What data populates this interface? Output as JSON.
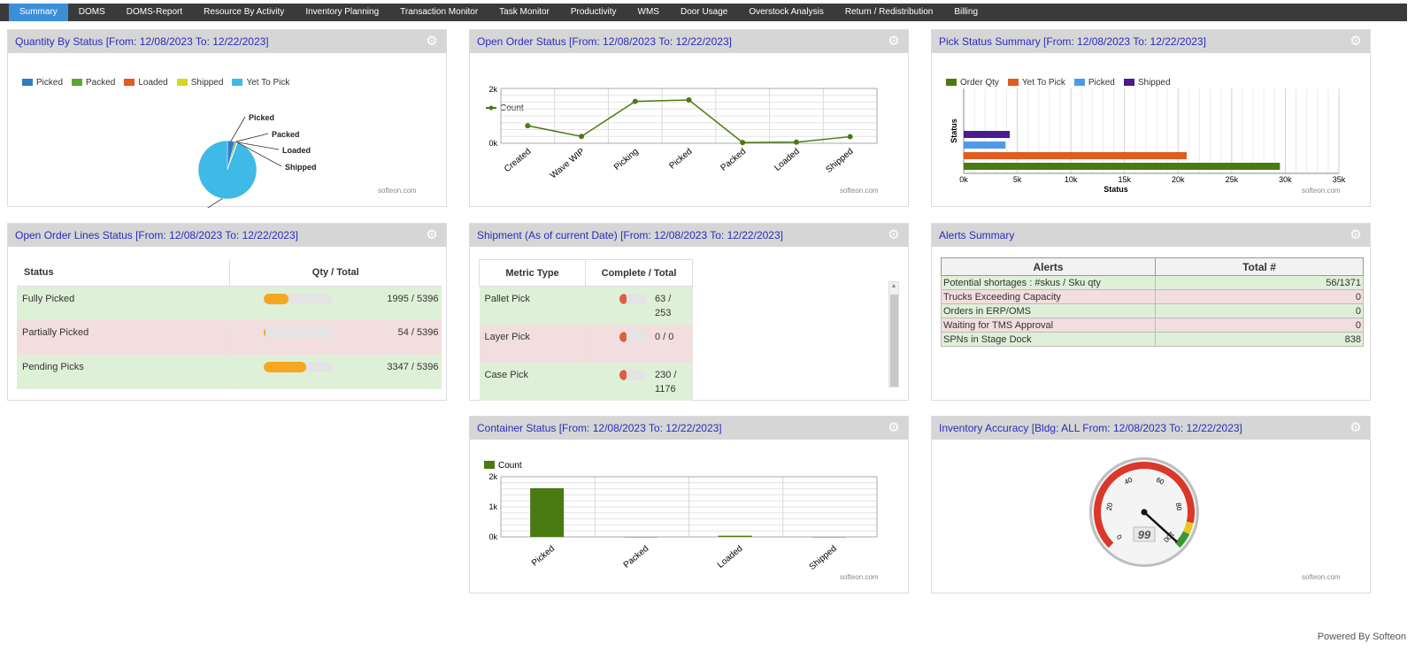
{
  "tabs": [
    "Summary",
    "DOMS",
    "DOMS-Report",
    "Resource By Activity",
    "Inventory Planning",
    "Transaction Monitor",
    "Task Monitor",
    "Productivity",
    "WMS",
    "Door Usage",
    "Overstock Analysis",
    "Return / Redistribution",
    "Billing"
  ],
  "watermark": "softeon.com",
  "footer": "Powered By Softeon",
  "panels": {
    "qty_status": {
      "title": "Quantity By Status [From: 12/08/2023 To: 12/22/2023]",
      "legend": [
        {
          "label": "Picked",
          "color": "#2e7cc4"
        },
        {
          "label": "Packed",
          "color": "#5aa832"
        },
        {
          "label": "Loaded",
          "color": "#e05c1f"
        },
        {
          "label": "Shipped",
          "color": "#d6d61f"
        },
        {
          "label": "Yet To Pick",
          "color": "#3fb9e6"
        }
      ],
      "slice_labels": [
        "Picked",
        "Packed",
        "Loaded",
        "Shipped",
        "Yet To Pick"
      ]
    },
    "open_order": {
      "title": "Open Order Status [From: 12/08/2023 To: 12/22/2023]",
      "legend": "Count"
    },
    "pick_summary": {
      "title": "Pick Status Summary [From: 12/08/2023 To: 12/22/2023]",
      "legend": [
        {
          "label": "Order Qty",
          "color": "#4a7a12"
        },
        {
          "label": "Yet To Pick",
          "color": "#e05c1f"
        },
        {
          "label": "Picked",
          "color": "#4d9ae8"
        },
        {
          "label": "Shipped",
          "color": "#4b1a8f"
        }
      ]
    },
    "order_lines": {
      "title": "Open Order Lines Status [From: 12/08/2023 To: 12/22/2023]",
      "headers": [
        "Status",
        "Qty / Total"
      ],
      "rows": [
        {
          "status": "Fully Picked",
          "value": "1995 / 5396",
          "fraction": 0.37
        },
        {
          "status": "Partially Picked",
          "value": "54 / 5396",
          "fraction": 0.01
        },
        {
          "status": "Pending Picks",
          "value": "3347 / 5396",
          "fraction": 0.62
        }
      ]
    },
    "shipment": {
      "title": "Shipment (As of current Date) [From: 12/08/2023 To: 12/22/2023]",
      "headers": [
        "Metric Type",
        "Complete / Total"
      ],
      "rows": [
        {
          "metric": "Pallet Pick",
          "line1": "63 /",
          "line2": "253"
        },
        {
          "metric": "Layer Pick",
          "line1": "0 / 0",
          "line2": ""
        },
        {
          "metric": "Case Pick",
          "line1": "230 /",
          "line2": "1176"
        }
      ]
    },
    "alerts": {
      "title": "Alerts Summary",
      "headers": [
        "Alerts",
        "Total #"
      ],
      "rows": [
        {
          "alert": "Potential shortages : #skus / Sku qty",
          "total": "56/1371"
        },
        {
          "alert": "Trucks Exceeding Capacity",
          "total": "0"
        },
        {
          "alert": "Orders in ERP/OMS",
          "total": "0"
        },
        {
          "alert": "Waiting for TMS Approval",
          "total": "0"
        },
        {
          "alert": "SPNs in Stage Dock",
          "total": "838"
        }
      ]
    },
    "container": {
      "title": "Container Status [From: 12/08/2023 To: 12/22/2023]",
      "legend": "Count"
    },
    "inventory": {
      "title": "Inventory Accuracy [Bldg: ALL From: 12/08/2023 To: 12/22/2023]",
      "gauge_value": "99",
      "gauge_ticks": [
        "0",
        "20",
        "40",
        "60",
        "80",
        "100"
      ]
    }
  },
  "chart_data": [
    {
      "type": "pie",
      "title": "Quantity By Status",
      "categories": [
        "Picked",
        "Packed",
        "Loaded",
        "Shipped",
        "Yet To Pick"
      ],
      "values": [
        4,
        1,
        0.3,
        0.3,
        94.4
      ]
    },
    {
      "type": "line",
      "title": "Open Order Status",
      "categories": [
        "Created",
        "Wave WIP",
        "Picking",
        "Picked",
        "Packed",
        "Loaded",
        "Shipped"
      ],
      "series": [
        {
          "name": "Count",
          "values": [
            640,
            250,
            1530,
            1580,
            30,
            40,
            240
          ]
        }
      ],
      "ylim": [
        0,
        2000
      ],
      "yticks": [
        "0k",
        "2k"
      ],
      "grid": true
    },
    {
      "type": "bar",
      "title": "Pick Status Summary",
      "orientation": "horizontal",
      "xlabel": "Status",
      "ylabel": "Status",
      "xlim": [
        0,
        35000
      ],
      "xticks": [
        "0k",
        "5k",
        "10k",
        "15k",
        "20k",
        "25k",
        "30k",
        "35k"
      ],
      "series": [
        {
          "name": "Shipped",
          "values": [
            4300
          ]
        },
        {
          "name": "Picked",
          "values": [
            3900
          ]
        },
        {
          "name": "Yet To Pick",
          "values": [
            20800
          ]
        },
        {
          "name": "Order Qty",
          "values": [
            29500
          ]
        }
      ],
      "grid": true
    },
    {
      "type": "bar",
      "title": "Container Status",
      "categories": [
        "Picked",
        "Packed",
        "Loaded",
        "Shipped"
      ],
      "series": [
        {
          "name": "Count",
          "values": [
            1620,
            0,
            40,
            0
          ]
        }
      ],
      "ylim": [
        0,
        2000
      ],
      "yticks": [
        "0k",
        "1k",
        "2k"
      ],
      "grid": true
    }
  ]
}
